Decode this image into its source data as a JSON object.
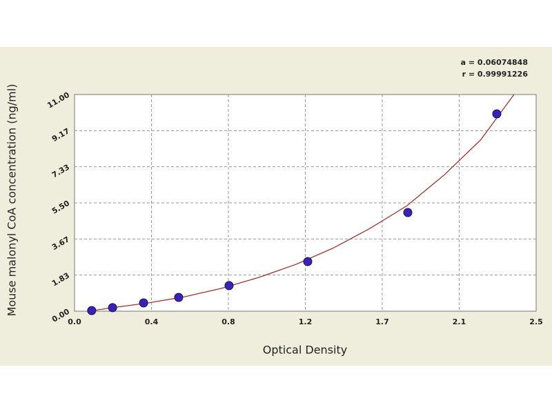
{
  "chart_data": {
    "type": "scatter",
    "x_label": "Optical Density",
    "y_label": "Mouse malonyl CoA concentration (ng/ml)",
    "annotations": [
      "a = 0.06074848",
      "r = 0.99991226"
    ],
    "x": [
      0.093,
      0.206,
      0.374,
      0.564,
      0.837,
      1.263,
      1.805,
      2.287
    ],
    "values": [
      0.03,
      0.18,
      0.42,
      0.7,
      1.3,
      2.52,
      5.01,
      10.02
    ],
    "color": "#3a22b5",
    "fit": {
      "x": [
        0.1,
        0.2,
        0.4,
        0.6,
        0.8,
        1.0,
        1.2,
        1.4,
        1.6,
        1.8,
        2.0,
        2.2,
        2.38
      ],
      "values": [
        0.03,
        0.17,
        0.42,
        0.74,
        1.17,
        1.72,
        2.38,
        3.2,
        4.2,
        5.35,
        6.9,
        8.7,
        11.0
      ],
      "color": "#a5322c"
    },
    "xlim": [
      0,
      2.5
    ],
    "ylim": [
      0,
      11
    ],
    "xticks": [
      {
        "value": 0,
        "label": "0.0"
      },
      {
        "value": 0.4167,
        "label": "0.4"
      },
      {
        "value": 0.8333,
        "label": "0.8"
      },
      {
        "value": 1.25,
        "label": "1.2"
      },
      {
        "value": 1.6667,
        "label": "1.7"
      },
      {
        "value": 2.0833,
        "label": "2.1"
      },
      2.5
    ],
    "yticks": [
      {
        "value": 0,
        "label": "0.00"
      },
      {
        "value": 1.8333,
        "label": "1.83"
      },
      {
        "value": 3.6667,
        "label": "3.67"
      },
      {
        "value": 5.5,
        "label": "5.50"
      },
      {
        "value": 7.3333,
        "label": "7.33"
      },
      {
        "value": 9.1667,
        "label": "9.17"
      },
      {
        "value": 11,
        "label": "11.00"
      }
    ],
    "grid": true
  }
}
